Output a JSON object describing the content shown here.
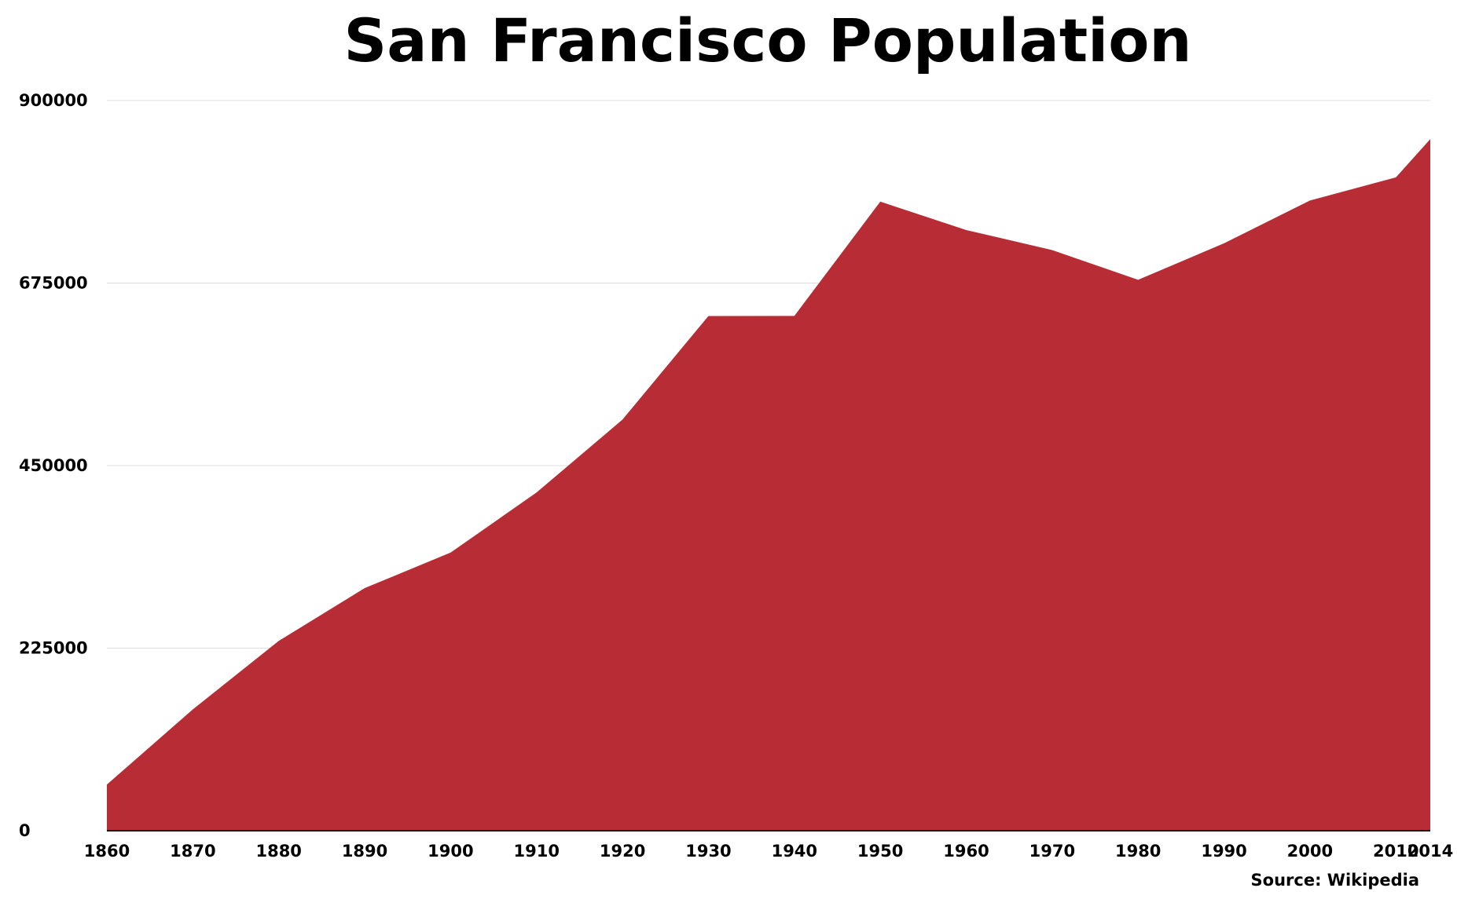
{
  "chart_data": {
    "type": "area",
    "title": "San Francisco Population",
    "xlabel": "",
    "ylabel": "",
    "x": [
      1860,
      1870,
      1880,
      1890,
      1900,
      1910,
      1920,
      1930,
      1940,
      1950,
      1960,
      1970,
      1980,
      1990,
      2000,
      2010,
      2014
    ],
    "x_tick_labels": [
      "1860",
      "1870",
      "1880",
      "1890",
      "1900",
      "1910",
      "1920",
      "1930",
      "1940",
      "1950",
      "1960",
      "1970",
      "1980",
      "1990",
      "2000",
      "2010",
      "2014"
    ],
    "series": [
      {
        "values": [
          56802,
          149473,
          233959,
          298997,
          342782,
          416912,
          506676,
          634394,
          634536,
          775357,
          740316,
          715674,
          678974,
          723959,
          776733,
          805235,
          852469
        ]
      }
    ],
    "y_ticks": [
      0,
      225000,
      450000,
      675000,
      900000
    ],
    "y_tick_labels": [
      "0",
      "225000",
      "450000",
      "675000",
      "900000"
    ],
    "ylim": [
      0,
      900000
    ],
    "xlim": [
      1860,
      2014
    ],
    "grid": true,
    "legend": "none",
    "fill_color": "#b82d35",
    "source": "Source: Wikipedia"
  }
}
